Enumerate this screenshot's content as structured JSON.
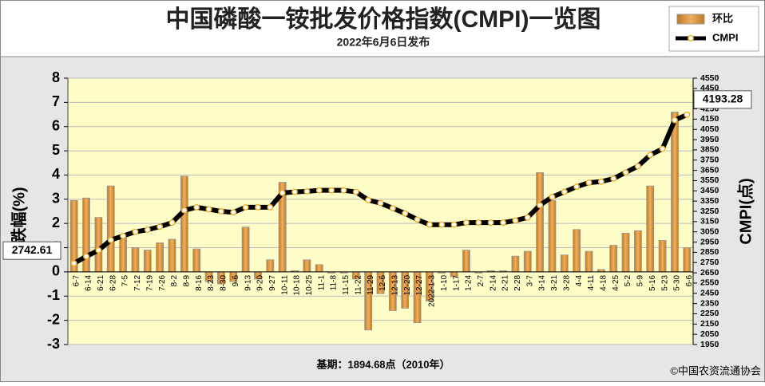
{
  "chart_data": {
    "type": "bar",
    "title": "中国磷酸一铵批发价格指数(CMPI)一览图",
    "subtitle": "2022年6月6日发布",
    "footnote": "基期：1894.68点（2010年）",
    "source": "©中国农资流通协会",
    "y_label": "跌幅(%)",
    "y2_label": "CMPI(点)",
    "legend": "top-right",
    "grid": true,
    "categories": [
      "6-7",
      "6-14",
      "6-21",
      "6-28",
      "7-5",
      "7-12",
      "7-19",
      "7-26",
      "8-2",
      "8-9",
      "8-16",
      "8-23",
      "8-30",
      "9-6",
      "9-13",
      "9-20",
      "9-27",
      "10-11",
      "10-18",
      "10-25",
      "11-1",
      "11-8",
      "11-15",
      "11-22",
      "11-29",
      "12-6",
      "12-13",
      "12-20",
      "12-27",
      "2022-1-3",
      "1-10",
      "1-17",
      "1-24",
      "2-7",
      "2-14",
      "2-21",
      "2-28",
      "3-7",
      "3-14",
      "3-21",
      "3-28",
      "4-4",
      "4-11",
      "4-18",
      "4-25",
      "5-2",
      "5-9",
      "5-16",
      "5-23",
      "5-30",
      "6-6"
    ],
    "series": [
      {
        "name": "环比",
        "type": "bar",
        "color": "#d8903a",
        "values": [
          2.95,
          3.05,
          2.25,
          3.55,
          1.4,
          1.0,
          0.9,
          1.2,
          1.35,
          3.95,
          0.95,
          -0.4,
          -0.5,
          -0.4,
          1.85,
          -0.3,
          0.5,
          3.7,
          0.05,
          0.5,
          0.3,
          -0.05,
          -0.05,
          -0.3,
          -2.4,
          -0.9,
          -1.6,
          -1.5,
          -2.1,
          -1.2,
          -0.05,
          -0.2,
          0.9,
          -0.05,
          0.05,
          0.05,
          0.65,
          0.85,
          4.1,
          2.95,
          0.7,
          1.75,
          0.85,
          0.1,
          1.1,
          1.6,
          1.7,
          3.55,
          1.3,
          6.6,
          1.0
        ]
      },
      {
        "name": "CMPI",
        "type": "line",
        "axis": "y2",
        "color": "#000000",
        "values": [
          2742.61,
          2810,
          2870,
          2970,
          3010,
          3050,
          3070,
          3100,
          3140,
          3260,
          3290,
          3270,
          3250,
          3240,
          3290,
          3290,
          3290,
          3430,
          3440,
          3445,
          3455,
          3455,
          3455,
          3440,
          3360,
          3330,
          3280,
          3230,
          3170,
          3120,
          3120,
          3120,
          3140,
          3140,
          3140,
          3140,
          3160,
          3190,
          3310,
          3390,
          3440,
          3490,
          3530,
          3540,
          3570,
          3630,
          3690,
          3800,
          3860,
          4140,
          4193.28
        ]
      }
    ],
    "ylim": [
      -3,
      8
    ],
    "yticks": [
      -3,
      -2,
      -1,
      0,
      1,
      2,
      3,
      4,
      5,
      6,
      7,
      8
    ],
    "y2lim": [
      1950,
      4550
    ],
    "y2ticks": [
      1950,
      2050,
      2150,
      2250,
      2350,
      2450,
      2550,
      2650,
      2750,
      2850,
      2950,
      3050,
      3150,
      3250,
      3350,
      3450,
      3550,
      3650,
      3750,
      3850,
      3950,
      4050,
      4150,
      4250,
      4350,
      4450,
      4550
    ]
  }
}
